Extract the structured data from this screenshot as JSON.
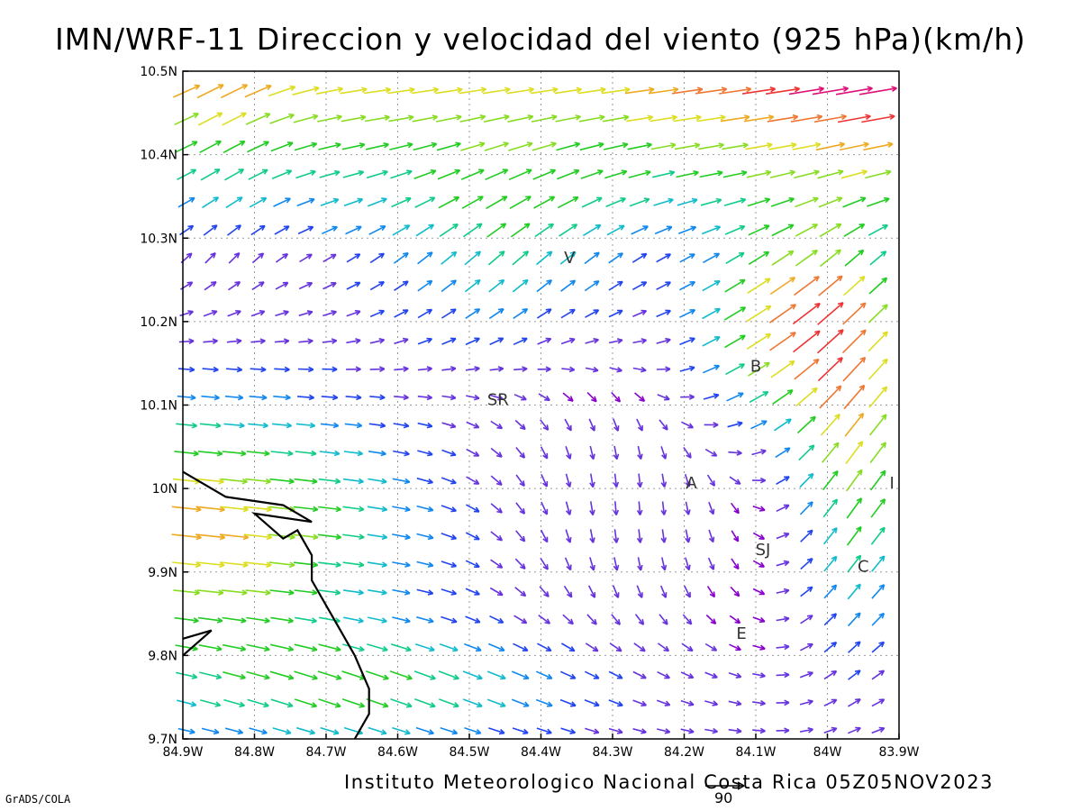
{
  "title": "IMN/WRF-11 Direccion y velocidad del viento (925 hPa)(km/h)",
  "credit": "Instituto Meteorologico Nacional Costa Rica 05Z05NOV2023",
  "software": "GrADS/COLA",
  "reference_vector_value": "90",
  "map": {
    "lon_range": [
      -84.9,
      -83.9
    ],
    "lat_range": [
      9.7,
      10.5
    ],
    "x_tick_labels": [
      "84.9W",
      "84.8W",
      "84.7W",
      "84.6W",
      "84.5W",
      "84.4W",
      "84.3W",
      "84.2W",
      "84.1W",
      "84W",
      "83.9W"
    ],
    "y_tick_labels": [
      "9.7N",
      "9.8N",
      "9.9N",
      "10N",
      "10.1N",
      "10.2N",
      "10.3N",
      "10.4N",
      "10.5N"
    ],
    "grid": true,
    "city_labels": [
      {
        "text": "V",
        "lon": -84.36,
        "lat": 10.27
      },
      {
        "text": "B",
        "lon": -84.1,
        "lat": 10.14
      },
      {
        "text": "SR",
        "lon": -84.46,
        "lat": 10.1
      },
      {
        "text": "A",
        "lon": -84.19,
        "lat": 10.0
      },
      {
        "text": "I",
        "lon": -83.91,
        "lat": 10.0
      },
      {
        "text": "SJ",
        "lon": -84.09,
        "lat": 9.92
      },
      {
        "text": "C",
        "lon": -83.95,
        "lat": 9.9
      },
      {
        "text": "E",
        "lon": -84.12,
        "lat": 9.82
      }
    ],
    "coastline": [
      [
        -84.9,
        10.02
      ],
      [
        -84.84,
        9.99
      ],
      [
        -84.76,
        9.98
      ],
      [
        -84.72,
        9.96
      ],
      [
        -84.8,
        9.97
      ],
      [
        -84.76,
        9.94
      ],
      [
        -84.74,
        9.95
      ],
      [
        -84.72,
        9.92
      ],
      [
        -84.72,
        9.89
      ],
      [
        -84.7,
        9.86
      ],
      [
        -84.68,
        9.83
      ],
      [
        -84.66,
        9.8
      ],
      [
        -84.64,
        9.76
      ],
      [
        -84.64,
        9.73
      ],
      [
        -84.66,
        9.7
      ]
    ],
    "coastline_2": [
      [
        -84.9,
        9.82
      ],
      [
        -84.86,
        9.83
      ],
      [
        -84.9,
        9.8
      ]
    ],
    "wind_colors": [
      "#8800cc",
      "#6633dd",
      "#2244ee",
      "#1188ee",
      "#11bbcc",
      "#11cc88",
      "#22cc22",
      "#88dd22",
      "#dddd22",
      "#eeaa22",
      "#ee7733",
      "#ee3333",
      "#dd1177"
    ]
  }
}
